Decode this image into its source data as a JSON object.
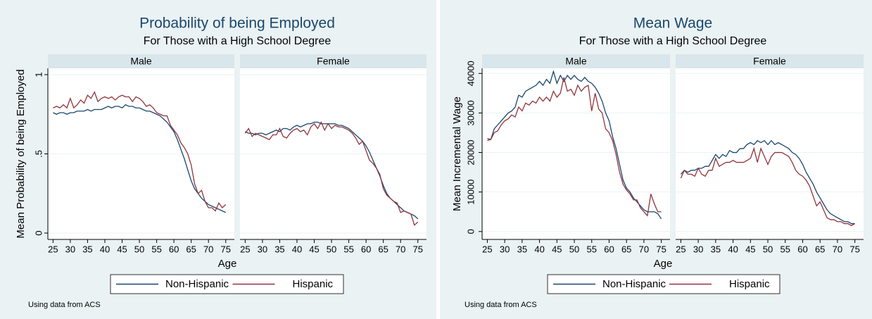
{
  "chart_data": [
    {
      "type": "line",
      "title": "Probability of being Employed",
      "subtitle": "For Those with a High School Degree",
      "ylabel": "Mean Probability of being Employed",
      "xlabel": "Age",
      "note": "Using data from ACS",
      "x": [
        25,
        26,
        27,
        28,
        29,
        30,
        31,
        32,
        33,
        34,
        35,
        36,
        37,
        38,
        39,
        40,
        41,
        42,
        43,
        44,
        45,
        46,
        47,
        48,
        49,
        50,
        51,
        52,
        53,
        54,
        55,
        56,
        57,
        58,
        59,
        60,
        61,
        62,
        63,
        64,
        65,
        66,
        67,
        68,
        69,
        70,
        71,
        72,
        73,
        74,
        75
      ],
      "xlim": [
        23.5,
        77.5
      ],
      "xticks": [
        25,
        30,
        35,
        40,
        45,
        50,
        55,
        60,
        65,
        70,
        75
      ],
      "ylim": [
        -0.04,
        1.04
      ],
      "yticks": [
        0,
        {
          "value": 0.5,
          "label": ".5"
        },
        1
      ],
      "grid": true,
      "series": [
        {
          "name": "Non-Hispanic",
          "color": "#1a476f"
        },
        {
          "name": "Hispanic",
          "color": "#90353b"
        }
      ],
      "panels": [
        {
          "label": "Male",
          "series": [
            {
              "values": [
                0.76,
                0.75,
                0.76,
                0.76,
                0.75,
                0.76,
                0.76,
                0.77,
                0.77,
                0.77,
                0.78,
                0.77,
                0.78,
                0.78,
                0.78,
                0.79,
                0.8,
                0.79,
                0.8,
                0.8,
                0.79,
                0.81,
                0.8,
                0.8,
                0.79,
                0.79,
                0.78,
                0.77,
                0.77,
                0.76,
                0.75,
                0.74,
                0.72,
                0.7,
                0.67,
                0.64,
                0.59,
                0.53,
                0.47,
                0.4,
                0.33,
                0.28,
                0.25,
                0.22,
                0.2,
                0.18,
                0.17,
                0.16,
                0.15,
                0.14,
                0.13
              ]
            },
            {
              "values": [
                0.79,
                0.8,
                0.79,
                0.81,
                0.79,
                0.85,
                0.79,
                0.81,
                0.84,
                0.82,
                0.87,
                0.85,
                0.89,
                0.83,
                0.85,
                0.86,
                0.85,
                0.86,
                0.84,
                0.86,
                0.87,
                0.86,
                0.86,
                0.83,
                0.86,
                0.85,
                0.83,
                0.8,
                0.81,
                0.79,
                0.76,
                0.75,
                0.74,
                0.74,
                0.68,
                0.65,
                0.62,
                0.57,
                0.54,
                0.5,
                0.43,
                0.31,
                0.25,
                0.27,
                0.2,
                0.16,
                0.16,
                0.14,
                0.19,
                0.16,
                0.18
              ]
            }
          ]
        },
        {
          "label": "Female",
          "series": [
            {
              "values": [
                0.64,
                0.63,
                0.63,
                0.62,
                0.63,
                0.63,
                0.62,
                0.63,
                0.64,
                0.65,
                0.64,
                0.66,
                0.66,
                0.65,
                0.67,
                0.68,
                0.67,
                0.68,
                0.69,
                0.69,
                0.7,
                0.7,
                0.69,
                0.69,
                0.69,
                0.69,
                0.69,
                0.68,
                0.68,
                0.67,
                0.66,
                0.64,
                0.62,
                0.6,
                0.58,
                0.55,
                0.51,
                0.46,
                0.41,
                0.36,
                0.3,
                0.25,
                0.22,
                0.2,
                0.18,
                0.16,
                0.14,
                0.13,
                0.12,
                0.11,
                0.09
              ]
            },
            {
              "values": [
                0.63,
                0.66,
                0.61,
                0.63,
                0.62,
                0.61,
                0.6,
                0.59,
                0.62,
                0.62,
                0.66,
                0.61,
                0.6,
                0.63,
                0.65,
                0.66,
                0.64,
                0.65,
                0.62,
                0.67,
                0.69,
                0.66,
                0.7,
                0.65,
                0.69,
                0.66,
                0.68,
                0.67,
                0.67,
                0.66,
                0.65,
                0.63,
                0.6,
                0.56,
                0.58,
                0.52,
                0.46,
                0.44,
                0.41,
                0.37,
                0.28,
                0.24,
                0.22,
                0.2,
                0.19,
                0.13,
                0.14,
                0.13,
                0.12,
                0.05,
                0.07
              ]
            }
          ]
        }
      ]
    },
    {
      "type": "line",
      "title": "Mean Wage",
      "subtitle": "For Those with a High School Degree",
      "ylabel": "Mean Incremental Wage",
      "xlabel": "Age",
      "note": "Using data from ACS",
      "x": [
        25,
        26,
        27,
        28,
        29,
        30,
        31,
        32,
        33,
        34,
        35,
        36,
        37,
        38,
        39,
        40,
        41,
        42,
        43,
        44,
        45,
        46,
        47,
        48,
        49,
        50,
        51,
        52,
        53,
        54,
        55,
        56,
        57,
        58,
        59,
        60,
        61,
        62,
        63,
        64,
        65,
        66,
        67,
        68,
        69,
        70,
        71,
        72,
        73,
        74,
        75
      ],
      "xlim": [
        23.5,
        77.5
      ],
      "xticks": [
        25,
        30,
        35,
        40,
        45,
        50,
        55,
        60,
        65,
        70,
        75
      ],
      "ylim": [
        -2000,
        41300
      ],
      "yticks": [
        0,
        10000,
        20000,
        30000,
        40000
      ],
      "grid": true,
      "series": [
        {
          "name": "Non-Hispanic",
          "color": "#1a476f"
        },
        {
          "name": "Hispanic",
          "color": "#90353b"
        }
      ],
      "panels": [
        {
          "label": "Male",
          "series": [
            {
              "values": [
                23500,
                23300,
                26000,
                27000,
                28000,
                29000,
                30000,
                30500,
                31500,
                34500,
                34000,
                35500,
                36000,
                36500,
                37000,
                38000,
                37000,
                38500,
                37500,
                40500,
                37500,
                39500,
                38000,
                39500,
                38500,
                39500,
                38500,
                38000,
                39000,
                38000,
                37500,
                36500,
                35000,
                33000,
                30000,
                28000,
                24000,
                21000,
                17000,
                13000,
                11000,
                10000,
                8500,
                7500,
                6500,
                5500,
                5000,
                5000,
                5000,
                4500,
                3200
              ]
            },
            {
              "values": [
                23000,
                23300,
                25000,
                25500,
                27000,
                28000,
                28500,
                29500,
                29000,
                31500,
                30500,
                32500,
                32000,
                33000,
                32500,
                34000,
                33000,
                34000,
                33000,
                35500,
                34000,
                35000,
                39000,
                35500,
                36000,
                34500,
                37000,
                35500,
                36500,
                37000,
                30500,
                35000,
                31000,
                30000,
                26000,
                25000,
                23000,
                19500,
                15000,
                12000,
                10500,
                9500,
                8000,
                8000,
                6000,
                5000,
                4000,
                9500,
                7000,
                5000,
                5000
              ]
            }
          ]
        },
        {
          "label": "Female",
          "series": [
            {
              "values": [
                14500,
                15500,
                15000,
                15500,
                15500,
                16000,
                16000,
                16500,
                16500,
                18000,
                19500,
                18500,
                19500,
                19000,
                20500,
                20000,
                20000,
                21000,
                21000,
                22000,
                22500,
                22000,
                23000,
                22500,
                23000,
                22000,
                23000,
                22000,
                22500,
                22000,
                21500,
                21000,
                20000,
                19500,
                18500,
                17000,
                15000,
                13500,
                12000,
                10000,
                8500,
                7000,
                5500,
                4500,
                4000,
                3500,
                3000,
                2500,
                2500,
                2000,
                2000
              ]
            },
            {
              "values": [
                13500,
                15500,
                14500,
                14500,
                14000,
                16000,
                14500,
                14000,
                15500,
                15500,
                18500,
                16500,
                17000,
                17500,
                17500,
                18000,
                17500,
                17500,
                17500,
                18000,
                18500,
                21000,
                17500,
                21000,
                19000,
                17000,
                19000,
                20000,
                20000,
                20000,
                19500,
                19000,
                17500,
                15500,
                14500,
                14000,
                13000,
                11500,
                9000,
                6500,
                7500,
                5500,
                3500,
                3000,
                3000,
                2500,
                2500,
                2000,
                2000,
                1500,
                2000
              ]
            }
          ]
        }
      ]
    }
  ]
}
